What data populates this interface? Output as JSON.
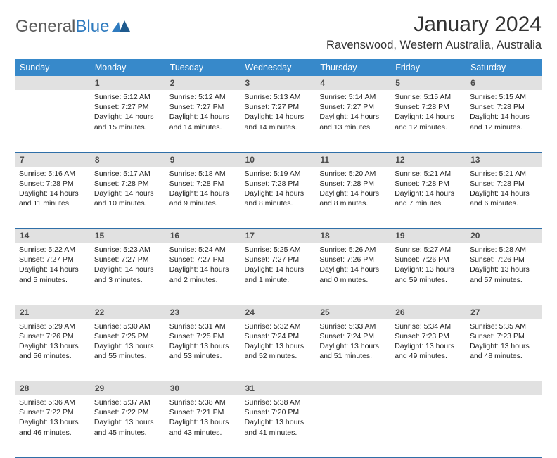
{
  "logo": {
    "text1": "General",
    "text2": "Blue"
  },
  "title": "January 2024",
  "location": "Ravenswood, Western Australia, Australia",
  "colors": {
    "header_bg": "#3789ca",
    "header_text": "#ffffff",
    "daynum_bg": "#e1e1e1",
    "daynum_text": "#4a4a4a",
    "row_border": "#2f6fa8",
    "body_text": "#222222",
    "logo_gray": "#5a5a5a",
    "logo_blue": "#2f7bbf"
  },
  "dayHeaders": [
    "Sunday",
    "Monday",
    "Tuesday",
    "Wednesday",
    "Thursday",
    "Friday",
    "Saturday"
  ],
  "weeks": [
    [
      null,
      {
        "n": "1",
        "sr": "5:12 AM",
        "ss": "7:27 PM",
        "dl": "14 hours and 15 minutes."
      },
      {
        "n": "2",
        "sr": "5:12 AM",
        "ss": "7:27 PM",
        "dl": "14 hours and 14 minutes."
      },
      {
        "n": "3",
        "sr": "5:13 AM",
        "ss": "7:27 PM",
        "dl": "14 hours and 14 minutes."
      },
      {
        "n": "4",
        "sr": "5:14 AM",
        "ss": "7:27 PM",
        "dl": "14 hours and 13 minutes."
      },
      {
        "n": "5",
        "sr": "5:15 AM",
        "ss": "7:28 PM",
        "dl": "14 hours and 12 minutes."
      },
      {
        "n": "6",
        "sr": "5:15 AM",
        "ss": "7:28 PM",
        "dl": "14 hours and 12 minutes."
      }
    ],
    [
      {
        "n": "7",
        "sr": "5:16 AM",
        "ss": "7:28 PM",
        "dl": "14 hours and 11 minutes."
      },
      {
        "n": "8",
        "sr": "5:17 AM",
        "ss": "7:28 PM",
        "dl": "14 hours and 10 minutes."
      },
      {
        "n": "9",
        "sr": "5:18 AM",
        "ss": "7:28 PM",
        "dl": "14 hours and 9 minutes."
      },
      {
        "n": "10",
        "sr": "5:19 AM",
        "ss": "7:28 PM",
        "dl": "14 hours and 8 minutes."
      },
      {
        "n": "11",
        "sr": "5:20 AM",
        "ss": "7:28 PM",
        "dl": "14 hours and 8 minutes."
      },
      {
        "n": "12",
        "sr": "5:21 AM",
        "ss": "7:28 PM",
        "dl": "14 hours and 7 minutes."
      },
      {
        "n": "13",
        "sr": "5:21 AM",
        "ss": "7:28 PM",
        "dl": "14 hours and 6 minutes."
      }
    ],
    [
      {
        "n": "14",
        "sr": "5:22 AM",
        "ss": "7:27 PM",
        "dl": "14 hours and 5 minutes."
      },
      {
        "n": "15",
        "sr": "5:23 AM",
        "ss": "7:27 PM",
        "dl": "14 hours and 3 minutes."
      },
      {
        "n": "16",
        "sr": "5:24 AM",
        "ss": "7:27 PM",
        "dl": "14 hours and 2 minutes."
      },
      {
        "n": "17",
        "sr": "5:25 AM",
        "ss": "7:27 PM",
        "dl": "14 hours and 1 minute."
      },
      {
        "n": "18",
        "sr": "5:26 AM",
        "ss": "7:26 PM",
        "dl": "14 hours and 0 minutes."
      },
      {
        "n": "19",
        "sr": "5:27 AM",
        "ss": "7:26 PM",
        "dl": "13 hours and 59 minutes."
      },
      {
        "n": "20",
        "sr": "5:28 AM",
        "ss": "7:26 PM",
        "dl": "13 hours and 57 minutes."
      }
    ],
    [
      {
        "n": "21",
        "sr": "5:29 AM",
        "ss": "7:26 PM",
        "dl": "13 hours and 56 minutes."
      },
      {
        "n": "22",
        "sr": "5:30 AM",
        "ss": "7:25 PM",
        "dl": "13 hours and 55 minutes."
      },
      {
        "n": "23",
        "sr": "5:31 AM",
        "ss": "7:25 PM",
        "dl": "13 hours and 53 minutes."
      },
      {
        "n": "24",
        "sr": "5:32 AM",
        "ss": "7:24 PM",
        "dl": "13 hours and 52 minutes."
      },
      {
        "n": "25",
        "sr": "5:33 AM",
        "ss": "7:24 PM",
        "dl": "13 hours and 51 minutes."
      },
      {
        "n": "26",
        "sr": "5:34 AM",
        "ss": "7:23 PM",
        "dl": "13 hours and 49 minutes."
      },
      {
        "n": "27",
        "sr": "5:35 AM",
        "ss": "7:23 PM",
        "dl": "13 hours and 48 minutes."
      }
    ],
    [
      {
        "n": "28",
        "sr": "5:36 AM",
        "ss": "7:22 PM",
        "dl": "13 hours and 46 minutes."
      },
      {
        "n": "29",
        "sr": "5:37 AM",
        "ss": "7:22 PM",
        "dl": "13 hours and 45 minutes."
      },
      {
        "n": "30",
        "sr": "5:38 AM",
        "ss": "7:21 PM",
        "dl": "13 hours and 43 minutes."
      },
      {
        "n": "31",
        "sr": "5:38 AM",
        "ss": "7:20 PM",
        "dl": "13 hours and 41 minutes."
      },
      null,
      null,
      null
    ]
  ],
  "labels": {
    "sunrise": "Sunrise:",
    "sunset": "Sunset:",
    "daylight": "Daylight:"
  }
}
